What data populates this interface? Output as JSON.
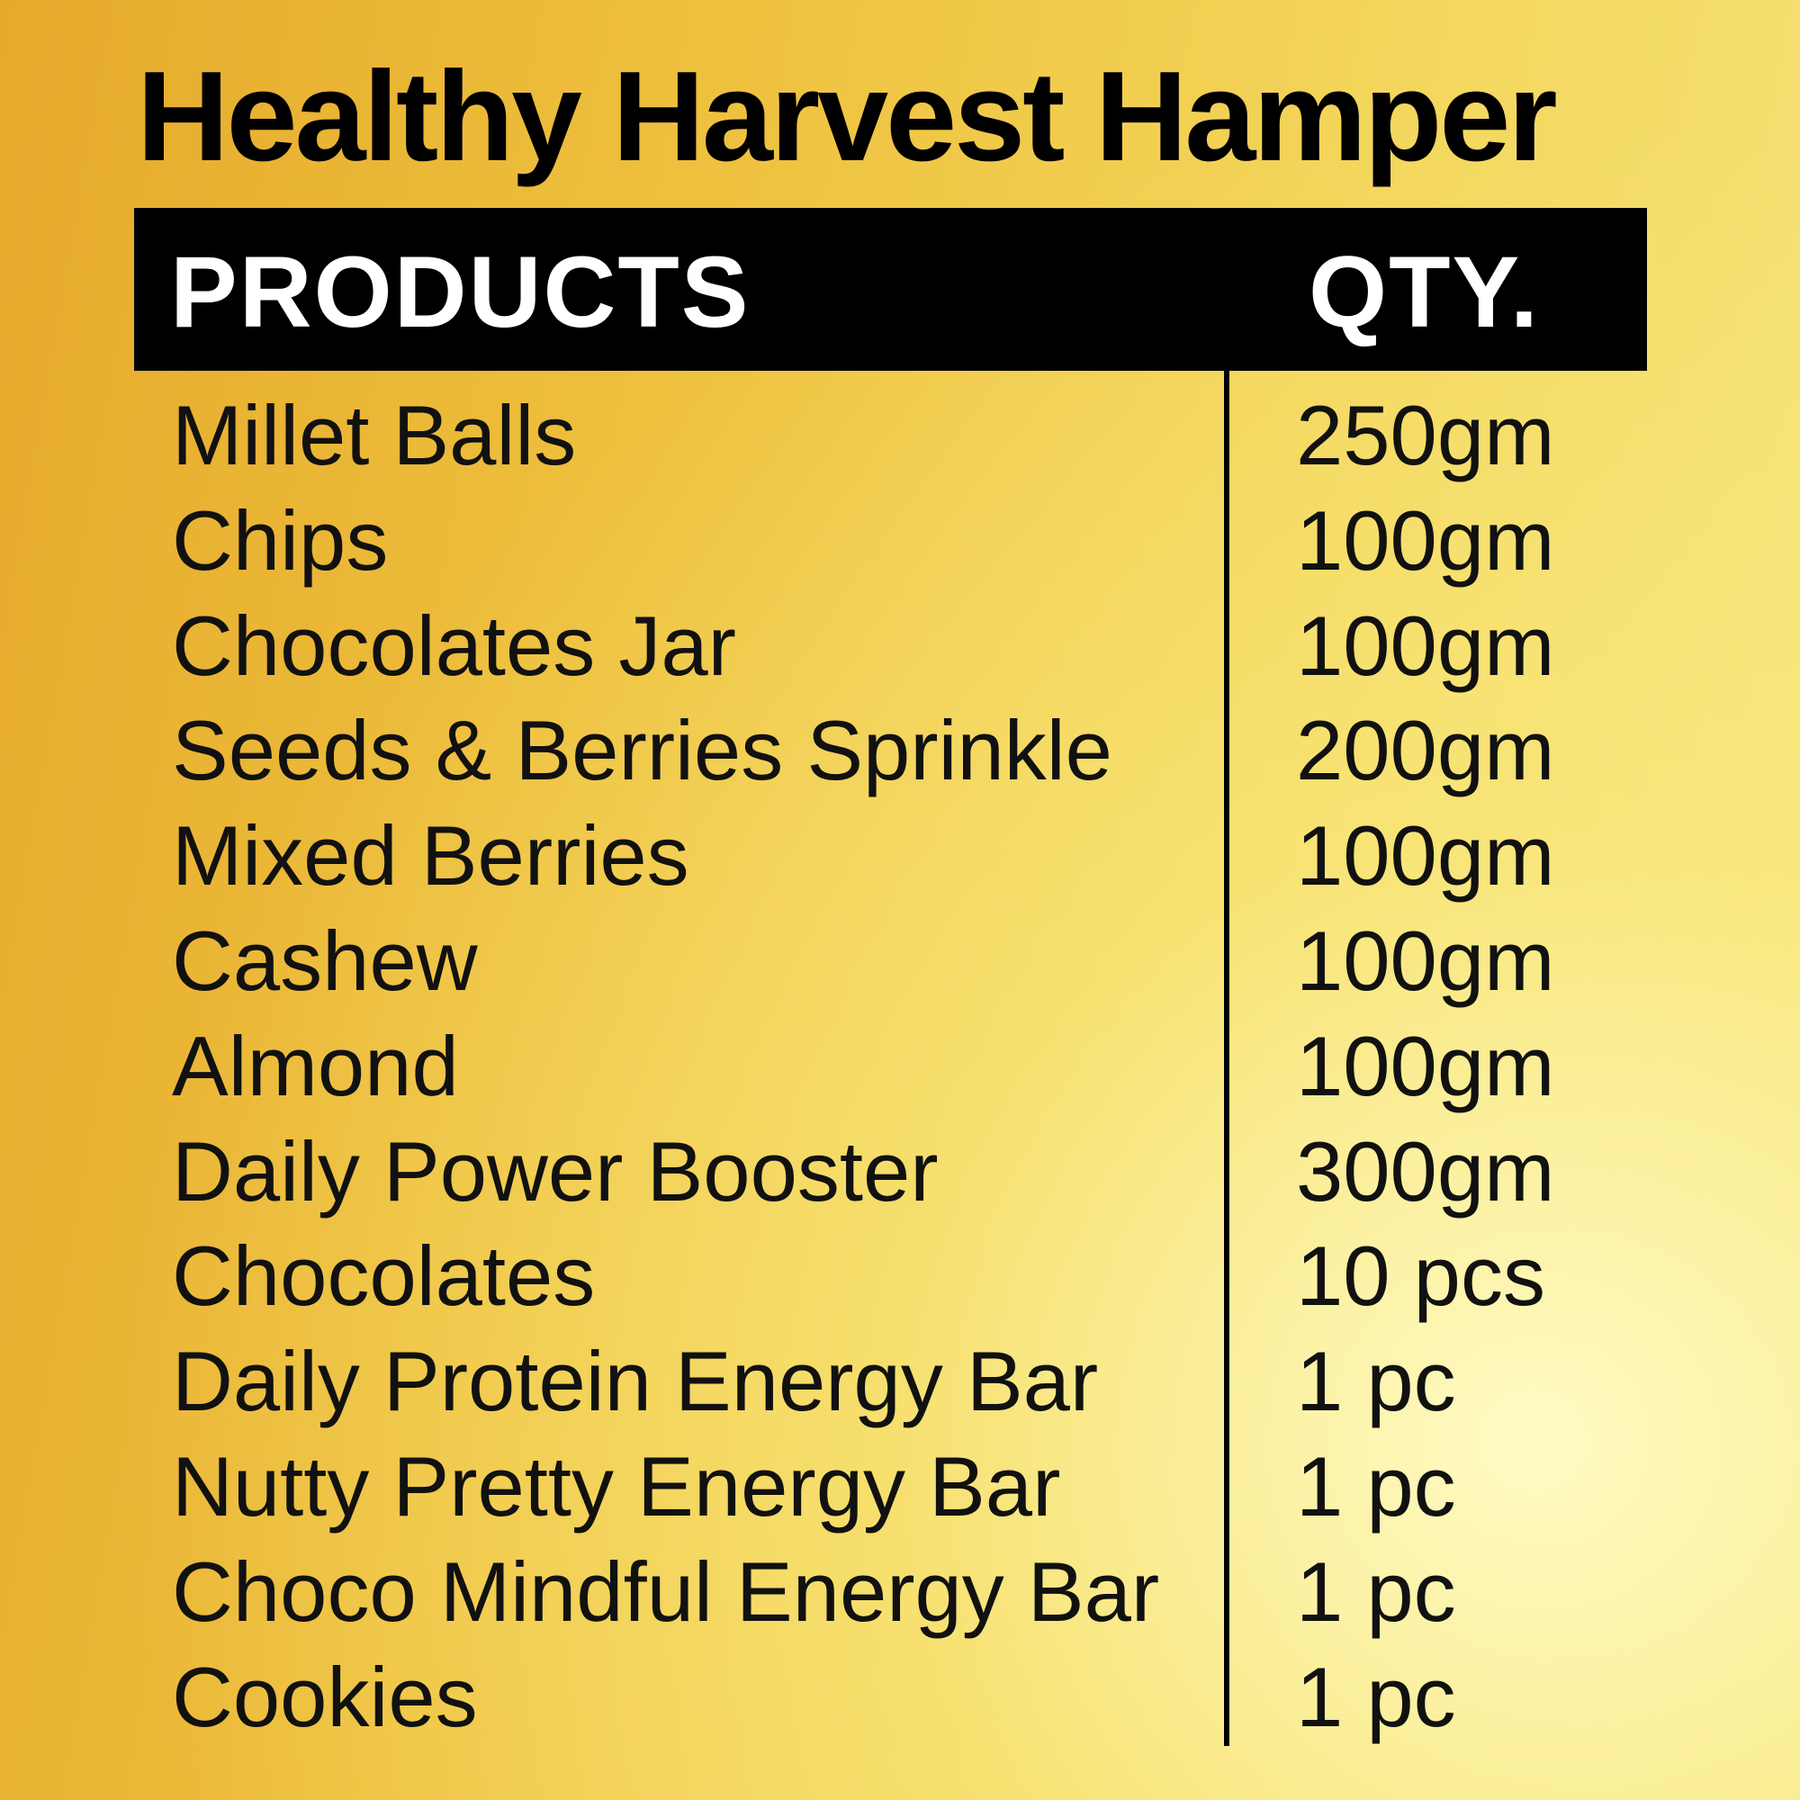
{
  "title": "Healthy Harvest Hamper",
  "header": {
    "products": "PRODUCTS",
    "qty": "QTY."
  },
  "colors": {
    "header_bg": "#000000",
    "header_text": "#ffffff",
    "background": "#eec13e"
  },
  "items": [
    {
      "name": "Millet Balls",
      "qty": "250gm"
    },
    {
      "name": "Chips",
      "qty": "100gm"
    },
    {
      "name": "Chocolates Jar",
      "qty": "100gm"
    },
    {
      "name": "Seeds & Berries Sprinkle",
      "qty": "200gm"
    },
    {
      "name": "Mixed Berries",
      "qty": "100gm"
    },
    {
      "name": "Cashew",
      "qty": "100gm"
    },
    {
      "name": "Almond",
      "qty": "100gm"
    },
    {
      "name": "Daily Power Booster",
      "qty": "300gm"
    },
    {
      "name": "Chocolates",
      "qty": "10 pcs"
    },
    {
      "name": "Daily Protein Energy Bar",
      "qty": "1 pc"
    },
    {
      "name": "Nutty Pretty Energy Bar",
      "qty": "1 pc"
    },
    {
      "name": "Choco Mindful Energy Bar",
      "qty": "1 pc"
    },
    {
      "name": "Cookies",
      "qty": "1 pc"
    }
  ]
}
